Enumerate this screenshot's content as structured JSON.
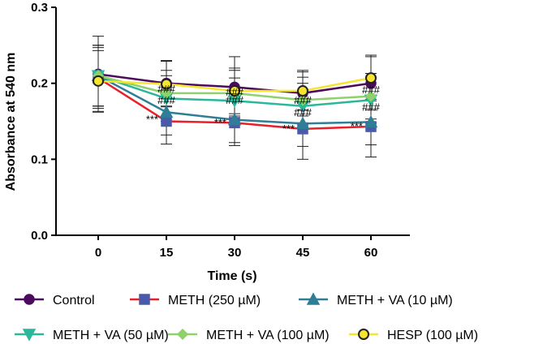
{
  "chart_data": {
    "type": "line",
    "title": "",
    "xlabel": "Time (s)",
    "ylabel": "Absorbance at 540 nm",
    "x": [
      0,
      15,
      30,
      45,
      60
    ],
    "x_tick_labels": [
      "0",
      "15",
      "30",
      "45",
      "60"
    ],
    "ylim": [
      0,
      0.3
    ],
    "y_ticks": [
      0.0,
      0.1,
      0.2,
      0.3
    ],
    "y_tick_labels": [
      "0.0",
      "0.1",
      "0.2",
      "0.3"
    ],
    "grid": false,
    "legend_position": "bottom",
    "series": [
      {
        "name": "Control",
        "marker": "circle",
        "line_color": "#4b0a5e",
        "marker_color": "#4b0a5e",
        "values": [
          0.212,
          0.2,
          0.195,
          0.187,
          0.2
        ],
        "error": [
          0.05,
          0.03,
          0.04,
          0.03,
          0.035
        ]
      },
      {
        "name": "METH (250 µM)",
        "marker": "square",
        "line_color": "#e8202a",
        "marker_color": "#4a5aa8",
        "values": [
          0.207,
          0.15,
          0.148,
          0.14,
          0.143
        ],
        "error": [
          0.04,
          0.03,
          0.03,
          0.04,
          0.04
        ]
      },
      {
        "name": "METH + VA (10 µM)",
        "marker": "triangle-up",
        "line_color": "#2d7e96",
        "marker_color": "#2d7e96",
        "values": [
          0.21,
          0.162,
          0.152,
          0.147,
          0.149
        ],
        "error": [
          0.04,
          0.03,
          0.03,
          0.03,
          0.03
        ]
      },
      {
        "name": "METH + VA (50 µM)",
        "marker": "triangle-down",
        "line_color": "#2bb89a",
        "marker_color": "#2bb89a",
        "values": [
          0.21,
          0.18,
          0.177,
          0.17,
          0.178
        ],
        "error": [
          0.04,
          0.03,
          0.03,
          0.03,
          0.03
        ]
      },
      {
        "name": "METH + VA (100 µM)",
        "marker": "diamond",
        "line_color": "#8fd16a",
        "marker_color": "#8fd16a",
        "values": [
          0.21,
          0.187,
          0.187,
          0.178,
          0.183
        ],
        "error": [
          0.04,
          0.03,
          0.03,
          0.03,
          0.03
        ]
      },
      {
        "name": "HESP (100 µM)",
        "marker": "circle-outline",
        "line_color": "#f5e52f",
        "marker_color": "#f5e52f",
        "values": [
          0.203,
          0.199,
          0.19,
          0.19,
          0.207
        ],
        "error": [
          0.04,
          0.03,
          0.03,
          0.025,
          0.03
        ]
      }
    ],
    "annotations": [
      {
        "text": "***",
        "x": 15,
        "y": 0.152
      },
      {
        "text": "***",
        "x": 30,
        "y": 0.148
      },
      {
        "text": "***",
        "x": 45,
        "y": 0.14
      },
      {
        "text": "***",
        "x": 60,
        "y": 0.143
      },
      {
        "text": "###",
        "x": 15,
        "y": 0.191
      },
      {
        "text": "###",
        "x": 15,
        "y": 0.176
      },
      {
        "text": "###",
        "x": 30,
        "y": 0.187
      },
      {
        "text": "###",
        "x": 30,
        "y": 0.176
      },
      {
        "text": "###",
        "x": 45,
        "y": 0.176
      },
      {
        "text": "###",
        "x": 45,
        "y": 0.16
      },
      {
        "text": "###",
        "x": 60,
        "y": 0.19
      },
      {
        "text": "###",
        "x": 60,
        "y": 0.167
      }
    ],
    "legend_rows": [
      [
        0,
        1,
        2
      ],
      [
        3,
        4,
        5
      ]
    ]
  }
}
